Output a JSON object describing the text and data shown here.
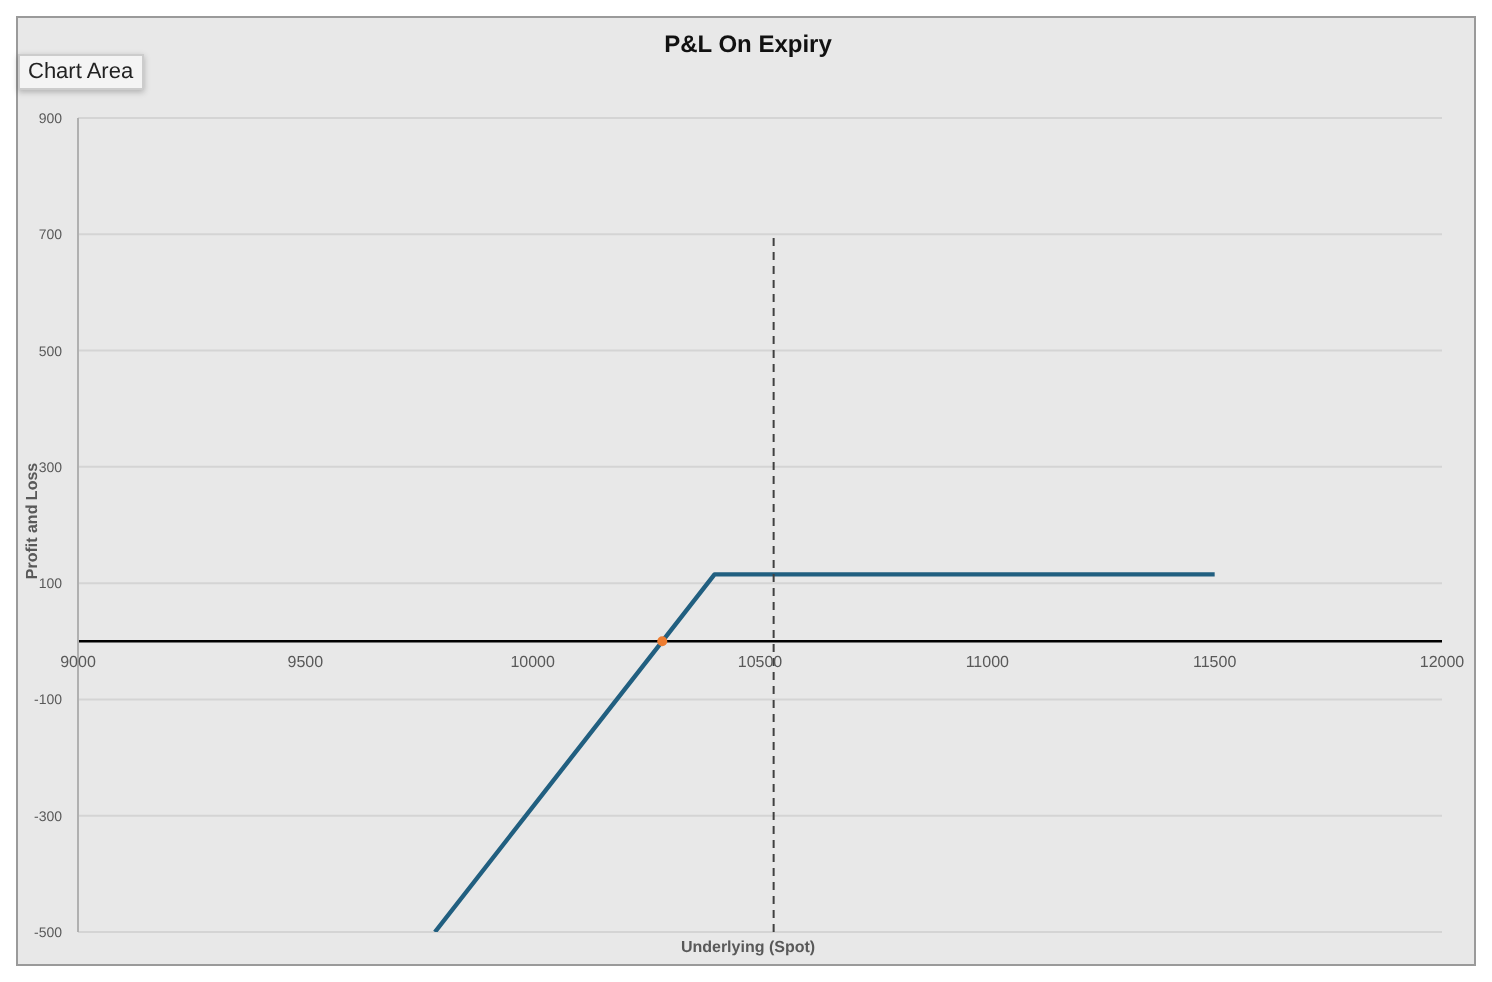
{
  "chart_data": {
    "type": "line",
    "title": "P&L On Expiry",
    "xlabel": "Underlying (Spot)",
    "ylabel": "Profit and Loss",
    "annotations": [
      "Chart Area"
    ],
    "series": [
      {
        "color": "#215f80",
        "x": [
          9785,
          10285,
          10400,
          11500
        ],
        "values": [
          -500,
          0,
          115,
          115
        ]
      },
      {
        "color": "#404040",
        "line_style": "dashed",
        "x": [
          10530,
          10530
        ],
        "values": [
          -500,
          700
        ]
      },
      {
        "type": "scatter",
        "marker": "circle",
        "color": "#ed7d31",
        "x": [
          10285
        ],
        "values": [
          0
        ]
      }
    ],
    "xlim": [
      9000,
      12000
    ],
    "xticks": [
      9000,
      9500,
      10000,
      10500,
      11000,
      11500,
      12000
    ],
    "ylim": [
      -500,
      900
    ],
    "yticks": [
      -500,
      -300,
      -100,
      100,
      300,
      500,
      700,
      900
    ],
    "grid": "y",
    "line_style": "solid"
  }
}
